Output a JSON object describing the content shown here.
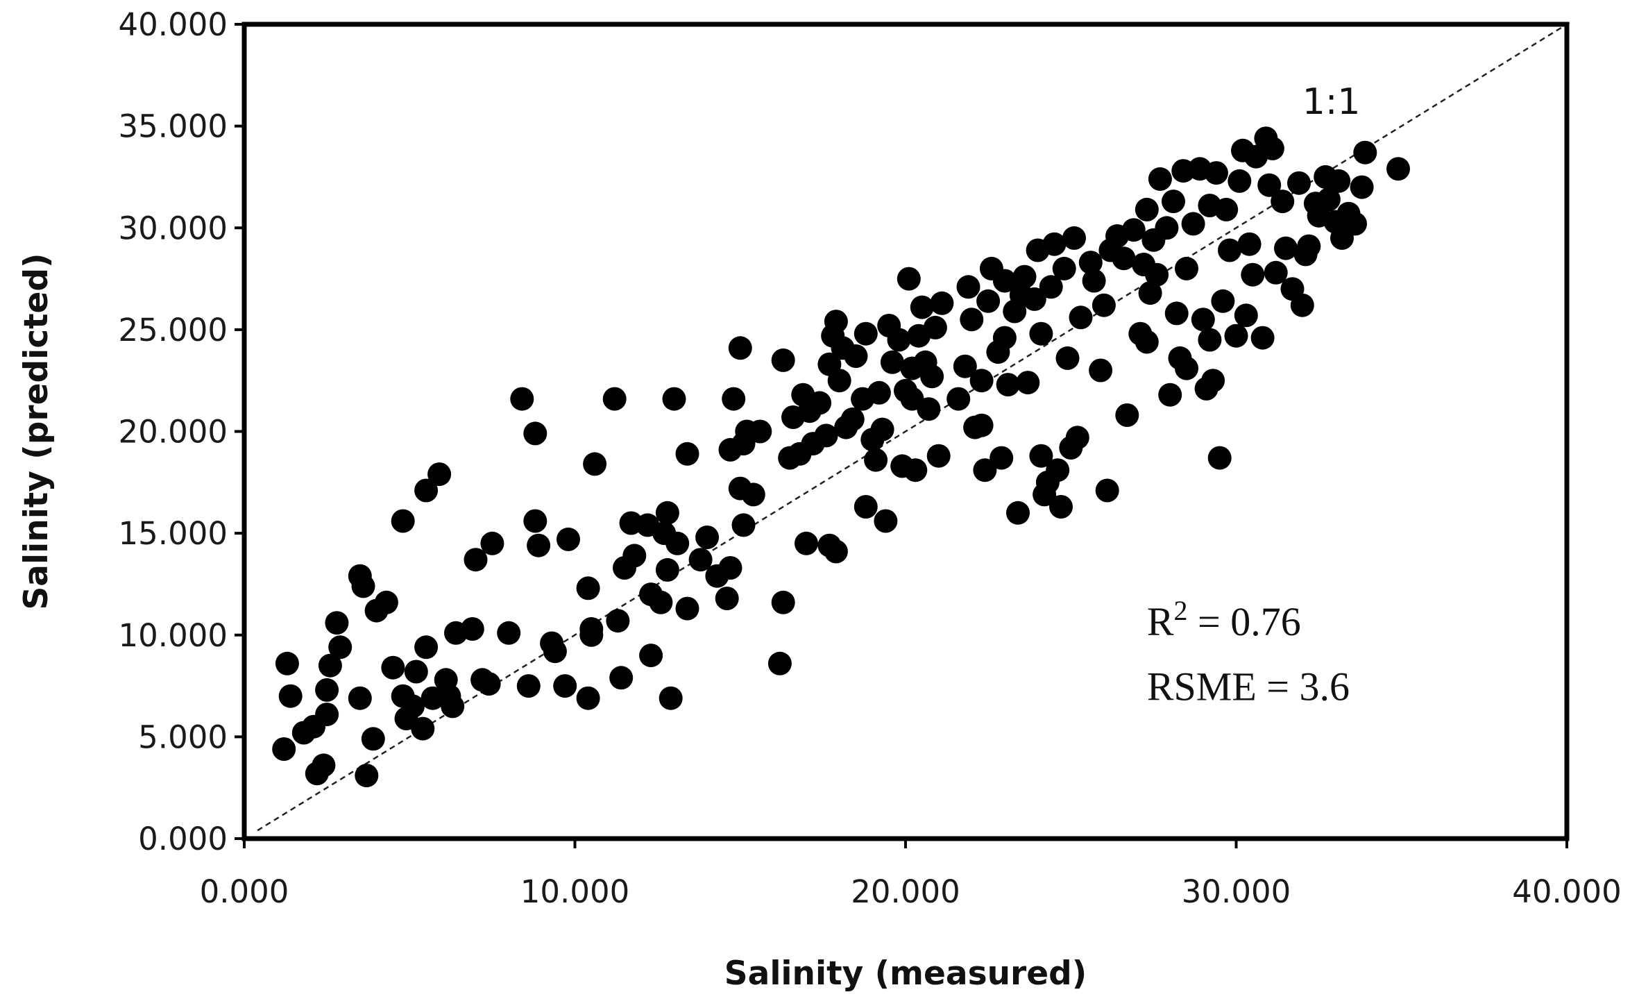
{
  "chart_data": {
    "type": "scatter",
    "title": "",
    "xlabel": "Salinity (measured)",
    "ylabel": "Salinity (predicted)",
    "xlim": [
      0,
      40
    ],
    "ylim": [
      0,
      40
    ],
    "xticks": [
      0,
      10,
      20,
      30,
      40
    ],
    "yticks": [
      0,
      5,
      10,
      15,
      20,
      25,
      30,
      35,
      40
    ],
    "xtick_labels": [
      "0.000",
      "10.000",
      "20.000",
      "30.000",
      "40.000"
    ],
    "ytick_labels": [
      "0.000",
      "5.000",
      "10.000",
      "15.000",
      "20.000",
      "25.000",
      "30.000",
      "35.000",
      "40.000"
    ],
    "grid": false,
    "reference_line": {
      "label": "1:1",
      "slope": 1,
      "intercept": 0,
      "style": "dashed"
    },
    "annotations": {
      "r2_prefix": "R",
      "r2_sup": "2",
      "r2_value": " = 0.76",
      "rsme": "RSME = 3.6"
    },
    "marker_color": "#000000",
    "series": [
      {
        "points": [
          [
            1.2,
            4.4
          ],
          [
            1.3,
            8.6
          ],
          [
            1.4,
            7.0
          ],
          [
            1.8,
            5.2
          ],
          [
            2.1,
            5.5
          ],
          [
            2.2,
            3.2
          ],
          [
            2.4,
            3.6
          ],
          [
            2.5,
            6.1
          ],
          [
            2.5,
            7.3
          ],
          [
            2.6,
            8.5
          ],
          [
            2.8,
            10.6
          ],
          [
            2.9,
            9.4
          ],
          [
            3.5,
            6.9
          ],
          [
            3.5,
            12.9
          ],
          [
            3.6,
            12.4
          ],
          [
            3.7,
            3.1
          ],
          [
            3.9,
            4.9
          ],
          [
            4.0,
            11.2
          ],
          [
            4.3,
            11.6
          ],
          [
            4.5,
            8.4
          ],
          [
            4.8,
            15.6
          ],
          [
            4.8,
            7.0
          ],
          [
            4.9,
            5.9
          ],
          [
            5.1,
            6.5
          ],
          [
            5.2,
            8.2
          ],
          [
            5.4,
            5.4
          ],
          [
            5.5,
            9.4
          ],
          [
            5.5,
            17.1
          ],
          [
            5.7,
            6.9
          ],
          [
            5.9,
            17.9
          ],
          [
            6.1,
            7.8
          ],
          [
            6.2,
            7.0
          ],
          [
            6.3,
            6.5
          ],
          [
            6.4,
            10.1
          ],
          [
            6.9,
            10.3
          ],
          [
            7.0,
            13.7
          ],
          [
            7.2,
            7.8
          ],
          [
            7.4,
            7.6
          ],
          [
            7.5,
            14.5
          ],
          [
            8.0,
            10.1
          ],
          [
            8.4,
            21.6
          ],
          [
            8.6,
            7.5
          ],
          [
            8.8,
            15.6
          ],
          [
            8.8,
            19.9
          ],
          [
            8.9,
            14.4
          ],
          [
            9.3,
            9.6
          ],
          [
            9.4,
            9.2
          ],
          [
            9.7,
            7.5
          ],
          [
            9.8,
            14.7
          ],
          [
            10.4,
            6.9
          ],
          [
            10.4,
            12.3
          ],
          [
            10.5,
            10.3
          ],
          [
            10.5,
            10.0
          ],
          [
            10.6,
            18.4
          ],
          [
            11.2,
            21.6
          ],
          [
            11.3,
            10.7
          ],
          [
            11.4,
            7.9
          ],
          [
            11.5,
            13.3
          ],
          [
            11.7,
            15.5
          ],
          [
            11.8,
            13.9
          ],
          [
            12.2,
            15.4
          ],
          [
            12.3,
            12.0
          ],
          [
            12.3,
            9.0
          ],
          [
            12.6,
            11.6
          ],
          [
            12.7,
            15.0
          ],
          [
            12.8,
            16.0
          ],
          [
            12.8,
            13.2
          ],
          [
            12.9,
            6.9
          ],
          [
            13.0,
            21.6
          ],
          [
            13.1,
            14.5
          ],
          [
            13.4,
            18.9
          ],
          [
            13.4,
            11.3
          ],
          [
            13.8,
            13.7
          ],
          [
            14.0,
            14.8
          ],
          [
            14.3,
            12.9
          ],
          [
            14.6,
            11.8
          ],
          [
            14.7,
            13.3
          ],
          [
            14.7,
            19.1
          ],
          [
            14.8,
            21.6
          ],
          [
            15.0,
            24.1
          ],
          [
            15.0,
            17.2
          ],
          [
            15.1,
            19.4
          ],
          [
            15.1,
            15.4
          ],
          [
            15.2,
            20.0
          ],
          [
            15.4,
            16.9
          ],
          [
            15.6,
            20.0
          ],
          [
            16.2,
            8.6
          ],
          [
            16.3,
            11.6
          ],
          [
            16.3,
            23.5
          ],
          [
            16.5,
            18.7
          ],
          [
            16.6,
            20.7
          ],
          [
            16.8,
            18.9
          ],
          [
            16.9,
            21.8
          ],
          [
            17.0,
            14.5
          ],
          [
            17.1,
            21.0
          ],
          [
            17.2,
            19.4
          ],
          [
            17.4,
            21.4
          ],
          [
            17.6,
            19.8
          ],
          [
            17.7,
            14.4
          ],
          [
            17.7,
            23.3
          ],
          [
            17.8,
            24.7
          ],
          [
            17.9,
            14.1
          ],
          [
            17.9,
            25.4
          ],
          [
            18.0,
            22.5
          ],
          [
            18.1,
            24.1
          ],
          [
            18.2,
            20.2
          ],
          [
            18.4,
            20.6
          ],
          [
            18.5,
            23.7
          ],
          [
            18.7,
            21.6
          ],
          [
            18.8,
            24.8
          ],
          [
            18.8,
            16.3
          ],
          [
            19.0,
            19.6
          ],
          [
            19.1,
            18.6
          ],
          [
            19.2,
            21.9
          ],
          [
            19.3,
            20.1
          ],
          [
            19.4,
            15.6
          ],
          [
            19.5,
            25.2
          ],
          [
            19.6,
            23.4
          ],
          [
            19.8,
            24.5
          ],
          [
            19.9,
            18.3
          ],
          [
            20.0,
            22.0
          ],
          [
            20.1,
            27.5
          ],
          [
            20.2,
            23.1
          ],
          [
            20.2,
            21.6
          ],
          [
            20.3,
            18.1
          ],
          [
            20.4,
            24.7
          ],
          [
            20.5,
            26.1
          ],
          [
            20.6,
            23.4
          ],
          [
            20.7,
            21.1
          ],
          [
            20.8,
            22.7
          ],
          [
            20.9,
            25.1
          ],
          [
            21.0,
            18.8
          ],
          [
            21.1,
            26.3
          ],
          [
            21.6,
            21.6
          ],
          [
            21.8,
            23.2
          ],
          [
            21.9,
            27.1
          ],
          [
            22.0,
            25.5
          ],
          [
            22.1,
            20.2
          ],
          [
            22.3,
            22.5
          ],
          [
            22.3,
            20.3
          ],
          [
            22.4,
            18.1
          ],
          [
            22.5,
            26.4
          ],
          [
            22.6,
            28.0
          ],
          [
            22.8,
            23.9
          ],
          [
            22.9,
            18.7
          ],
          [
            23.0,
            27.4
          ],
          [
            23.0,
            24.6
          ],
          [
            23.1,
            22.3
          ],
          [
            23.3,
            25.9
          ],
          [
            23.4,
            16.0
          ],
          [
            23.5,
            26.7
          ],
          [
            23.6,
            27.6
          ],
          [
            23.7,
            22.4
          ],
          [
            23.9,
            26.5
          ],
          [
            24.0,
            28.9
          ],
          [
            24.1,
            18.8
          ],
          [
            24.1,
            24.8
          ],
          [
            24.2,
            16.9
          ],
          [
            24.3,
            17.5
          ],
          [
            24.4,
            27.1
          ],
          [
            24.5,
            29.2
          ],
          [
            24.6,
            18.1
          ],
          [
            24.7,
            16.3
          ],
          [
            24.8,
            28.0
          ],
          [
            24.9,
            23.6
          ],
          [
            25.0,
            19.2
          ],
          [
            25.1,
            29.5
          ],
          [
            25.2,
            19.7
          ],
          [
            25.3,
            25.6
          ],
          [
            25.6,
            28.3
          ],
          [
            25.7,
            27.4
          ],
          [
            25.9,
            23.0
          ],
          [
            26.0,
            26.2
          ],
          [
            26.1,
            17.1
          ],
          [
            26.2,
            28.9
          ],
          [
            26.4,
            29.6
          ],
          [
            26.6,
            28.5
          ],
          [
            26.7,
            20.8
          ],
          [
            26.9,
            29.9
          ],
          [
            27.1,
            24.8
          ],
          [
            27.2,
            28.2
          ],
          [
            27.3,
            30.9
          ],
          [
            27.3,
            24.4
          ],
          [
            27.4,
            26.8
          ],
          [
            27.5,
            29.4
          ],
          [
            27.6,
            27.7
          ],
          [
            27.7,
            32.4
          ],
          [
            27.9,
            30.0
          ],
          [
            28.0,
            21.8
          ],
          [
            28.1,
            31.3
          ],
          [
            28.2,
            25.8
          ],
          [
            28.3,
            23.6
          ],
          [
            28.4,
            32.8
          ],
          [
            28.5,
            23.1
          ],
          [
            28.5,
            28.0
          ],
          [
            28.7,
            30.2
          ],
          [
            28.9,
            32.9
          ],
          [
            29.0,
            25.5
          ],
          [
            29.1,
            22.1
          ],
          [
            29.2,
            24.5
          ],
          [
            29.2,
            31.1
          ],
          [
            29.3,
            22.5
          ],
          [
            29.4,
            32.7
          ],
          [
            29.5,
            18.7
          ],
          [
            29.6,
            26.4
          ],
          [
            29.7,
            30.9
          ],
          [
            29.8,
            28.9
          ],
          [
            30.0,
            24.7
          ],
          [
            30.1,
            32.3
          ],
          [
            30.2,
            33.8
          ],
          [
            30.3,
            25.7
          ],
          [
            30.4,
            29.2
          ],
          [
            30.5,
            27.7
          ],
          [
            30.6,
            33.5
          ],
          [
            30.8,
            24.6
          ],
          [
            30.9,
            34.4
          ],
          [
            31.0,
            32.1
          ],
          [
            31.1,
            33.9
          ],
          [
            31.2,
            27.8
          ],
          [
            31.4,
            31.3
          ],
          [
            31.5,
            29.0
          ],
          [
            31.7,
            27.0
          ],
          [
            31.9,
            32.2
          ],
          [
            32.0,
            26.2
          ],
          [
            32.1,
            28.7
          ],
          [
            32.2,
            29.1
          ],
          [
            32.4,
            31.2
          ],
          [
            32.5,
            30.6
          ],
          [
            32.7,
            32.5
          ],
          [
            32.8,
            31.4
          ],
          [
            33.0,
            30.3
          ],
          [
            33.1,
            32.3
          ],
          [
            33.2,
            29.5
          ],
          [
            33.4,
            30.7
          ],
          [
            33.6,
            30.2
          ],
          [
            33.8,
            32.0
          ],
          [
            33.9,
            33.7
          ],
          [
            34.9,
            32.9
          ]
        ]
      }
    ]
  }
}
